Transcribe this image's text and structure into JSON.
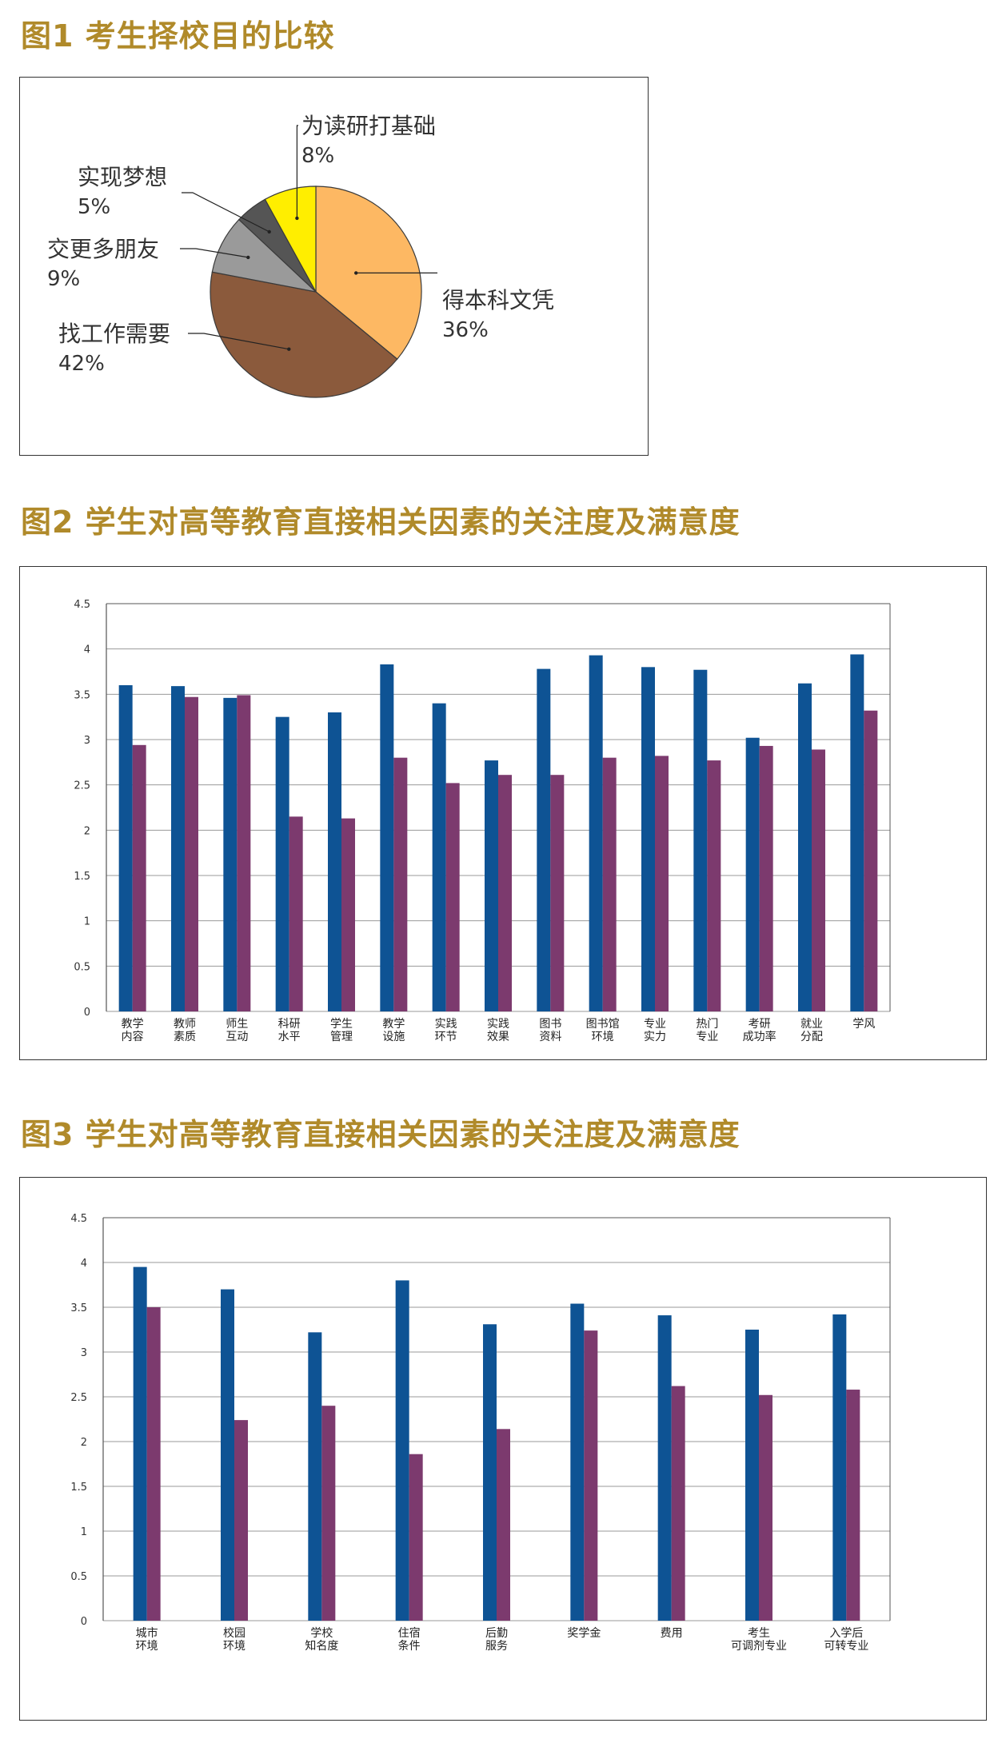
{
  "colors": {
    "title": "#b08a2a",
    "attention": "#0e5394",
    "satisfaction": "#7c3a6e",
    "grid": "#9a9a9a"
  },
  "figures": [
    {
      "title": "图1  考生择校目的比较"
    },
    {
      "title": "图2    学生对高等教育直接相关因素的关注度及满意度"
    },
    {
      "title": "图3    学生对高等教育直接相关因素的关注度及满意度"
    }
  ],
  "chart_data": [
    {
      "type": "pie",
      "title": "图1  考生择校目的比较",
      "slices": [
        {
          "label": "得本科文凭",
          "pct": "36%",
          "value": 36,
          "color": "#fdb863"
        },
        {
          "label": "找工作需要",
          "pct": "42%",
          "value": 42,
          "color": "#8b5a3c"
        },
        {
          "label": "交更多朋友",
          "pct": "9%",
          "value": 9,
          "color": "#9a9a9a"
        },
        {
          "label": "实现梦想",
          "pct": "5%",
          "value": 5,
          "color": "#555555"
        },
        {
          "label": "为读研打基础",
          "pct": "8%",
          "value": 8,
          "color": "#ffee00"
        }
      ]
    },
    {
      "type": "bar",
      "title": "图2    学生对高等教育直接相关因素的关注度及满意度",
      "ylim": [
        0,
        4.5
      ],
      "yticks": [
        "0",
        "0.5",
        "1",
        "1.5",
        "2",
        "2.5",
        "3",
        "3.5",
        "4",
        "4.5"
      ],
      "grid": true,
      "categories": [
        [
          "教学",
          "内容"
        ],
        [
          "教师",
          "素质"
        ],
        [
          "师生",
          "互动"
        ],
        [
          "科研",
          "水平"
        ],
        [
          "学生",
          "管理"
        ],
        [
          "教学",
          "设施"
        ],
        [
          "实践",
          "环节"
        ],
        [
          "实践",
          "效果"
        ],
        [
          "图书",
          "资料"
        ],
        [
          "图书馆",
          "环境"
        ],
        [
          "专业",
          "实力"
        ],
        [
          "热门",
          "专业"
        ],
        [
          "考研",
          "成功率"
        ],
        [
          "就业",
          "分配"
        ],
        [
          "学风"
        ]
      ],
      "series": [
        {
          "values": [
            3.6,
            3.59,
            3.46,
            3.25,
            3.3,
            3.83,
            3.4,
            2.77,
            3.78,
            3.93,
            3.8,
            3.77,
            3.02,
            3.62,
            3.94
          ]
        },
        {
          "values": [
            2.94,
            3.47,
            3.49,
            2.15,
            2.13,
            2.8,
            2.52,
            2.61,
            2.61,
            2.8,
            2.82,
            2.77,
            2.93,
            2.89,
            3.32
          ]
        }
      ]
    },
    {
      "type": "bar",
      "title": "图3    学生对高等教育直接相关因素的关注度及满意度",
      "ylim": [
        0,
        4.5
      ],
      "yticks": [
        "0",
        "0.5",
        "1",
        "1.5",
        "2",
        "2.5",
        "3",
        "3.5",
        "4",
        "4.5"
      ],
      "grid": true,
      "categories": [
        [
          "城市",
          "环境"
        ],
        [
          "校园",
          "环境"
        ],
        [
          "学校",
          "知名度"
        ],
        [
          "住宿",
          "条件"
        ],
        [
          "后勤",
          "服务"
        ],
        [
          "奖学金"
        ],
        [
          "费用"
        ],
        [
          "考生",
          "可调剂专业"
        ],
        [
          "入学后",
          "可转专业"
        ]
      ],
      "series": [
        {
          "values": [
            3.95,
            3.7,
            3.22,
            3.8,
            3.31,
            3.54,
            3.41,
            3.25,
            3.42
          ]
        },
        {
          "values": [
            3.5,
            2.24,
            2.4,
            1.86,
            2.14,
            3.24,
            2.62,
            2.52,
            2.58
          ]
        }
      ]
    }
  ]
}
